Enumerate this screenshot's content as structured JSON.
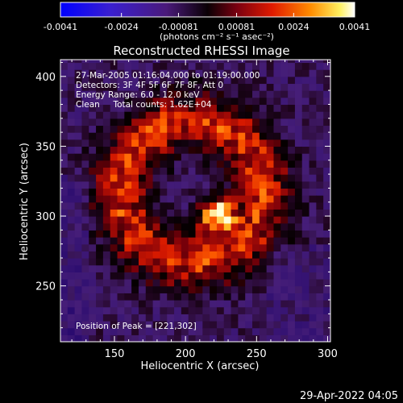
{
  "chart_data": {
    "type": "heatmap",
    "title": "Reconstructed RHESSI Image",
    "xlabel": "Heliocentric X (arcsec)",
    "ylabel": "Heliocentric Y (arcsec)",
    "xlim": [
      112,
      302
    ],
    "ylim": [
      210,
      412
    ],
    "xticks": [
      150,
      200,
      250,
      300
    ],
    "yticks": [
      250,
      300,
      350,
      400
    ],
    "colorbar": {
      "ticks": [
        "-0.0041",
        "-0.0024",
        "-0.00081",
        "0.00081",
        "0.0024",
        "0.0041"
      ],
      "range": [
        -0.0041,
        0.0041
      ],
      "unit_label": "(photons cm⁻² s⁻¹ asec⁻²)"
    },
    "annotations": [
      "27-Mar-2005 01:16:04.000 to 01:19:00.000",
      "Detectors: 3F 4F 5F 6F 7F 8F, Att 0",
      "Energy Range: 6.0 - 12.0 keV",
      "Clean     Total counts: 1.62E+04"
    ],
    "peak_label": "Position of Peak = [221,302]",
    "peak": {
      "x": 221,
      "y": 302
    },
    "ring": {
      "center_x": 205,
      "center_y": 318,
      "radius": 50
    }
  },
  "footer": {
    "timestamp": "29-Apr-2022 04:05"
  }
}
